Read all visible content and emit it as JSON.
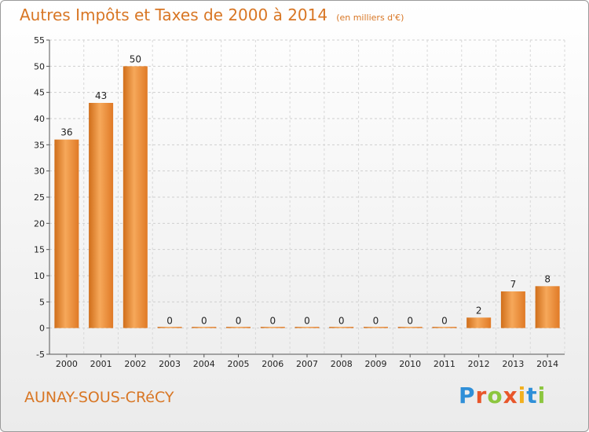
{
  "header": {
    "title": "Autres Impôts et Taxes de 2000 à 2014",
    "subtitle": "(en milliers d'€)"
  },
  "footer": {
    "commune": "AUNAY-SOUS-CRéCY",
    "logo_text": "Proxiti",
    "logo_colors": [
      "#2f8fd8",
      "#e8562a",
      "#8cc63f",
      "#e8562a",
      "#f2b01e",
      "#2f8fd8",
      "#8cc63f"
    ]
  },
  "chart_data": {
    "type": "bar",
    "categories": [
      "2000",
      "2001",
      "2002",
      "2003",
      "2004",
      "2005",
      "2006",
      "2007",
      "2008",
      "2009",
      "2010",
      "2011",
      "2012",
      "2013",
      "2014"
    ],
    "values": [
      36,
      43,
      50,
      0,
      0,
      0,
      0,
      0,
      0,
      0,
      0,
      0,
      2,
      7,
      8
    ],
    "data_labels": [
      "36",
      "43",
      "50",
      "0",
      "0",
      "0",
      "0",
      "0",
      "0",
      "0",
      "0",
      "0",
      "2",
      "7",
      "8"
    ],
    "ylim": [
      -5,
      55
    ],
    "yticks": [
      -5,
      0,
      5,
      10,
      15,
      20,
      25,
      30,
      35,
      40,
      45,
      50,
      55
    ],
    "grid": "horizontal dashed",
    "bar_color": "#e8862f",
    "bar_color_light": "#f6a85a",
    "bar_color_dark": "#d06e1a"
  }
}
